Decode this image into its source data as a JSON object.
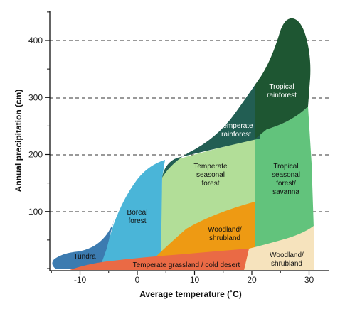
{
  "diagram": {
    "x_axis": {
      "title": "Average temperature (˚C)",
      "ticks": [
        {
          "value": -10,
          "label": "-10"
        },
        {
          "value": 0,
          "label": "0"
        },
        {
          "value": 10,
          "label": "10"
        },
        {
          "value": 20,
          "label": "20"
        },
        {
          "value": 30,
          "label": "30"
        }
      ],
      "range": [
        -15.5,
        34
      ]
    },
    "y_axis": {
      "title": "Annual precipitation (cm)",
      "ticks": [
        {
          "value": 100,
          "label": "100"
        },
        {
          "value": 200,
          "label": "200"
        },
        {
          "value": 300,
          "label": "300"
        },
        {
          "value": 400,
          "label": "400"
        }
      ],
      "range": [
        0,
        450
      ]
    },
    "gridlines": "dashed, at 100 / 200 / 300 / 400 cm",
    "biomes": [
      {
        "key": "tundra",
        "lines": [
          "Tundra"
        ],
        "color": "#3C7BB0",
        "text_color": "#111111"
      },
      {
        "key": "boreal",
        "lines": [
          "Boreal",
          "forest"
        ],
        "color": "#4AB5D8",
        "text_color": "#111111"
      },
      {
        "key": "temperate_rainforest",
        "lines": [
          "Temperate",
          "rainforest"
        ],
        "color": "#225E53",
        "text_color": "#ffffff"
      },
      {
        "key": "tropical_rainforest",
        "lines": [
          "Tropical",
          "rainforest"
        ],
        "color": "#1E5632",
        "text_color": "#ffffff"
      },
      {
        "key": "temperate_seasonal",
        "lines": [
          "Temperate",
          "seasonal",
          "forest"
        ],
        "color": "#B2DE98",
        "text_color": "#111111"
      },
      {
        "key": "tropical_seasonal",
        "lines": [
          "Tropical",
          "seasonal",
          "forest/",
          "savanna"
        ],
        "color": "#62C37C",
        "text_color": "#111111"
      },
      {
        "key": "woodland_temperate",
        "lines": [
          "Woodland/",
          "shrubland"
        ],
        "color": "#EE9A13",
        "text_color": "#111111"
      },
      {
        "key": "grassland",
        "lines": [
          "Temperate grassland / cold desert"
        ],
        "color": "#EA6A45",
        "text_color": "#111111"
      },
      {
        "key": "woodland_tropical",
        "lines": [
          "Woodland/",
          "shrubland"
        ],
        "color": "#F6E3BD",
        "text_color": "#111111"
      }
    ]
  }
}
